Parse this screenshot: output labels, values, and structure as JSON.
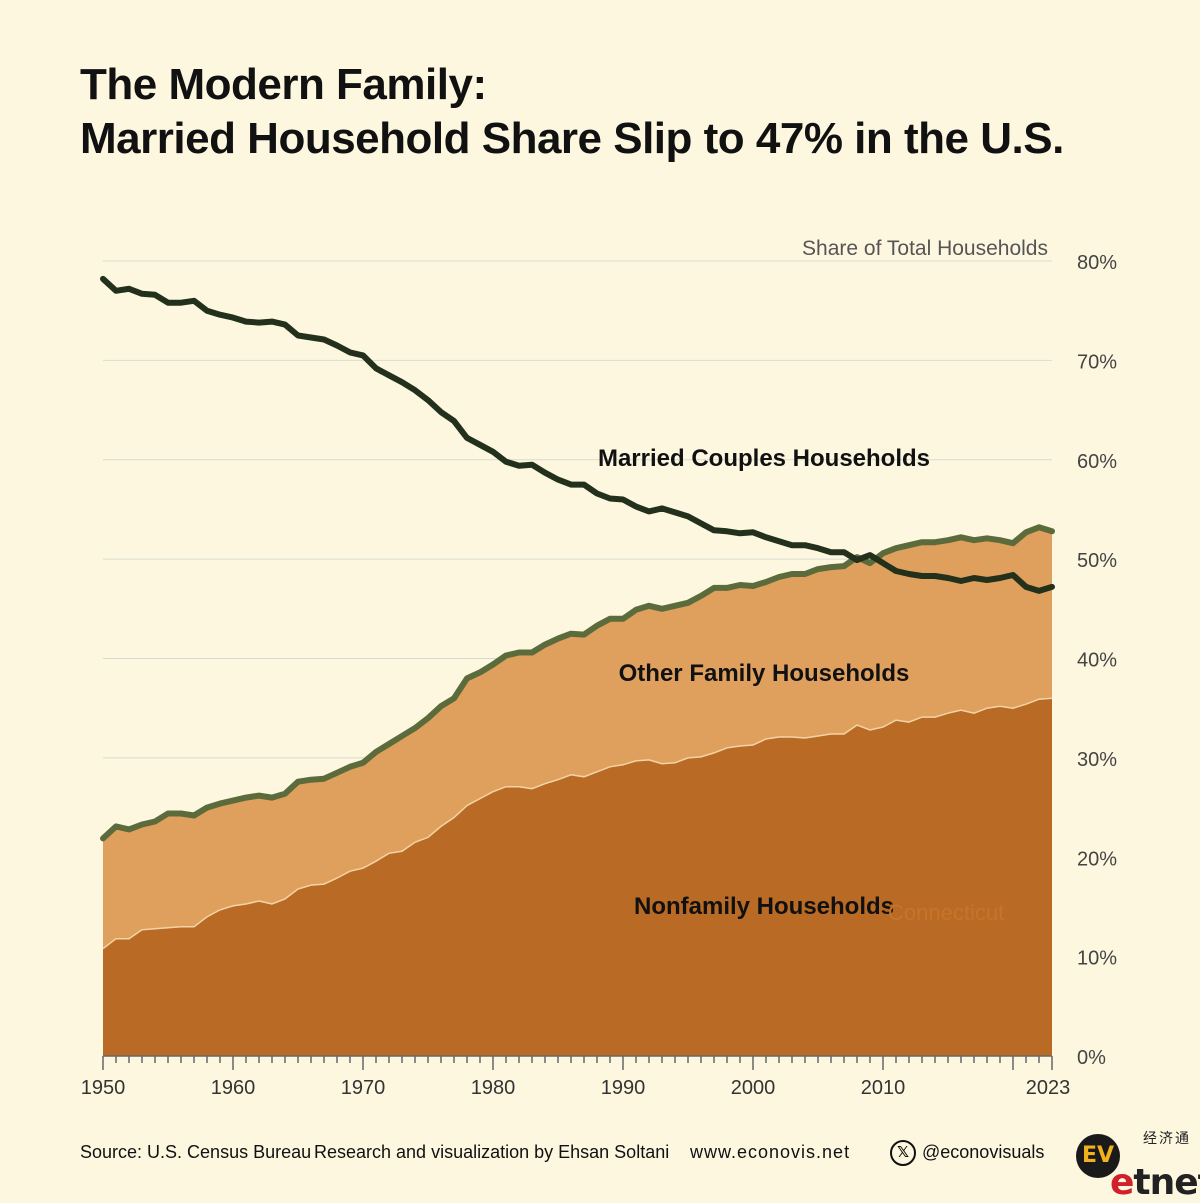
{
  "title": {
    "line1": "The Modern Family:",
    "line2": "Married Household Share Slip to 47% in the U.S."
  },
  "chart_data": {
    "type": "area",
    "ylabel": "Share of Total Households",
    "ylim": [
      0,
      80
    ],
    "y_ticks": [
      "0%",
      "10%",
      "20%",
      "30%",
      "40%",
      "50%",
      "60%",
      "70%",
      "80%"
    ],
    "x_ticks": [
      "1950",
      "1960",
      "1970",
      "1980",
      "1990",
      "2000",
      "2010",
      "2023"
    ],
    "x": [
      1950,
      1951,
      1952,
      1953,
      1954,
      1955,
      1956,
      1957,
      1958,
      1959,
      1960,
      1961,
      1962,
      1963,
      1964,
      1965,
      1966,
      1967,
      1968,
      1969,
      1970,
      1971,
      1972,
      1973,
      1974,
      1975,
      1976,
      1977,
      1978,
      1979,
      1980,
      1981,
      1982,
      1983,
      1984,
      1985,
      1986,
      1987,
      1988,
      1989,
      1990,
      1991,
      1992,
      1993,
      1994,
      1995,
      1996,
      1997,
      1998,
      1999,
      2000,
      2001,
      2002,
      2003,
      2004,
      2005,
      2006,
      2007,
      2008,
      2009,
      2010,
      2011,
      2012,
      2013,
      2014,
      2015,
      2016,
      2017,
      2018,
      2019,
      2020,
      2021,
      2022,
      2023
    ],
    "series": [
      {
        "name": "Nonfamily Households",
        "type": "area",
        "color": "#b96a24",
        "values": [
          10.8,
          11.8,
          11.8,
          12.7,
          12.8,
          12.9,
          13.0,
          13.0,
          14.0,
          14.7,
          15.1,
          15.3,
          15.6,
          15.3,
          15.8,
          16.8,
          17.2,
          17.3,
          17.9,
          18.6,
          18.9,
          19.6,
          20.4,
          20.6,
          21.5,
          22.0,
          23.1,
          24.0,
          25.2,
          25.9,
          26.6,
          27.1,
          27.1,
          26.9,
          27.4,
          27.8,
          28.3,
          28.1,
          28.6,
          29.1,
          29.3,
          29.7,
          29.8,
          29.4,
          29.5,
          30.0,
          30.1,
          30.5,
          31.0,
          31.2,
          31.3,
          31.9,
          32.1,
          32.1,
          32.0,
          32.2,
          32.4,
          32.4,
          33.3,
          32.8,
          33.1,
          33.8,
          33.6,
          34.1,
          34.1,
          34.5,
          34.8,
          34.5,
          35.0,
          35.2,
          35.0,
          35.4,
          35.9,
          36.0
        ]
      },
      {
        "name": "Other Family Households",
        "type": "area",
        "color": "#dfa05e",
        "values": [
          21.9,
          23.1,
          22.8,
          23.3,
          23.6,
          24.4,
          24.4,
          24.2,
          25.0,
          25.4,
          25.7,
          26.0,
          26.2,
          26.0,
          26.4,
          27.6,
          27.8,
          27.9,
          28.5,
          29.1,
          29.5,
          30.6,
          31.4,
          32.2,
          33.0,
          34.0,
          35.2,
          36.0,
          38.0,
          38.6,
          39.4,
          40.3,
          40.6,
          40.6,
          41.4,
          42.0,
          42.5,
          42.4,
          43.3,
          44.0,
          44.0,
          44.9,
          45.3,
          45.0,
          45.3,
          45.6,
          46.3,
          47.1,
          47.1,
          47.4,
          47.3,
          47.7,
          48.2,
          48.5,
          48.5,
          49.0,
          49.2,
          49.3,
          50.2,
          49.6,
          50.6,
          51.1,
          51.4,
          51.7,
          51.7,
          51.9,
          52.2,
          51.9,
          52.1,
          51.9,
          51.6,
          52.7,
          53.2,
          52.8
        ]
      },
      {
        "name": "Married Couples Households",
        "type": "line",
        "color": "#23301c",
        "values": [
          78.2,
          77.0,
          77.2,
          76.7,
          76.6,
          75.8,
          75.8,
          76.0,
          75.0,
          74.6,
          74.3,
          73.9,
          73.8,
          73.9,
          73.6,
          72.5,
          72.3,
          72.1,
          71.5,
          70.8,
          70.5,
          69.2,
          68.5,
          67.8,
          67.0,
          66.0,
          64.8,
          63.9,
          62.2,
          61.5,
          60.8,
          59.8,
          59.4,
          59.5,
          58.7,
          58.0,
          57.5,
          57.5,
          56.6,
          56.1,
          56.0,
          55.3,
          54.8,
          55.1,
          54.7,
          54.3,
          53.6,
          52.9,
          52.8,
          52.6,
          52.7,
          52.2,
          51.8,
          51.4,
          51.4,
          51.1,
          50.7,
          50.7,
          49.9,
          50.4,
          49.6,
          48.8,
          48.5,
          48.3,
          48.3,
          48.1,
          47.8,
          48.1,
          47.9,
          48.1,
          48.4,
          47.2,
          46.8,
          47.2
        ]
      }
    ],
    "labels": {
      "married": "Married Couples Households",
      "other": "Other Family Households",
      "nonfamily": "Nonfamily Households",
      "stray": "Connecticut"
    },
    "grid": true,
    "legend": "inline"
  },
  "footer": {
    "source": "Source: U.S. Census Bureau",
    "credit": "Research and visualization by Ehsan Soltani",
    "website": "www.econovis.net",
    "social_icon": "x-icon",
    "handle": "@econovisuals",
    "ev_logo": "EV",
    "etnet_cn": "经济通",
    "etnet_e": "e",
    "etnet_rest": "tnet"
  },
  "colors": {
    "background": "#fdf7e0",
    "married_line": "#23301c",
    "family_line": "#5c6b3b",
    "other_area": "#dfa05e",
    "nonfamily_area": "#b96a24",
    "grid": "#d8dccf"
  }
}
